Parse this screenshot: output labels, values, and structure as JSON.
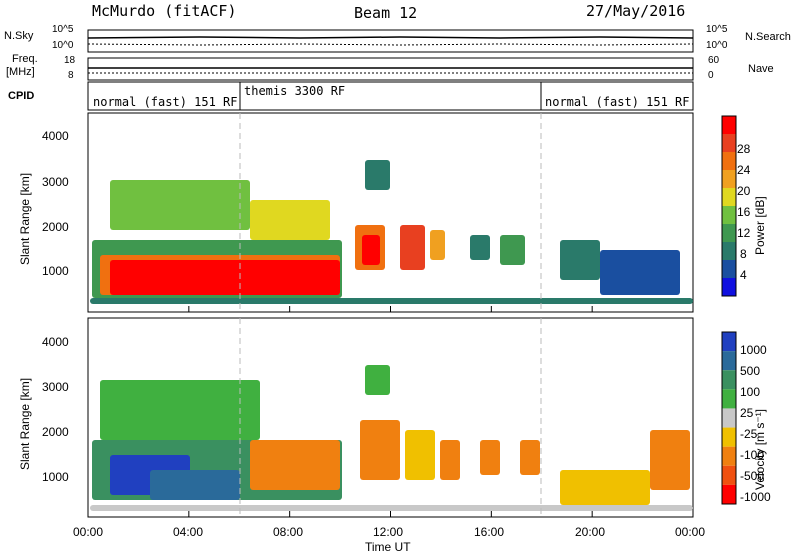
{
  "header": {
    "station": "McMurdo (fitACF)",
    "beam": "Beam 12",
    "date": "27/May/2016"
  },
  "top_panels": {
    "nsky_label": "N.Sky",
    "nsky_ticks": [
      "10^5",
      "10^0"
    ],
    "nsearch_label": "N.Search",
    "nsearch_ticks": [
      "10^5",
      "10^0"
    ],
    "freq_label_1": "Freq.",
    "freq_label_2": "[MHz]",
    "freq_ticks": [
      "18",
      "8"
    ],
    "nave_label": "Nave",
    "nave_ticks": [
      "60",
      "0"
    ],
    "cpid_label": "CPID",
    "modes": [
      "normal (fast) 151 RF",
      "themis 3300 RF",
      "normal (fast) 151 RF"
    ]
  },
  "chart_data": [
    {
      "type": "heatmap",
      "title": "",
      "ylabel": "Slant Range [km]",
      "xlabel": "Time UT",
      "x_ticks": [
        "00:00",
        "04:00",
        "08:00",
        "12:00",
        "16:00",
        "20:00",
        "00:00"
      ],
      "y_ticks": [
        1000,
        2000,
        3000,
        4000
      ],
      "ylim": [
        200,
        4600
      ],
      "xlim_hours": [
        0,
        24
      ],
      "colorbar": {
        "label": "Power [dB]",
        "ticks": [
          "4",
          "8",
          "12",
          "16",
          "20",
          "24",
          "28"
        ],
        "colors": [
          "#1010e0",
          "#1a4fa0",
          "#2a7a6a",
          "#3f9850",
          "#70c040",
          "#e0d820",
          "#f0a020",
          "#f07010",
          "#e84020",
          "#ff0000"
        ]
      }
    },
    {
      "type": "heatmap",
      "title": "",
      "ylabel": "Slant Range [km]",
      "xlabel": "Time UT",
      "x_ticks": [
        "00:00",
        "04:00",
        "08:00",
        "12:00",
        "16:00",
        "20:00",
        "00:00"
      ],
      "y_ticks": [
        1000,
        2000,
        3000,
        4000
      ],
      "ylim": [
        200,
        4600
      ],
      "xlim_hours": [
        0,
        24
      ],
      "colorbar": {
        "label": "Velocity [m s⁻¹]",
        "ticks": [
          "1000",
          "500",
          "100",
          "25",
          "-25",
          "-100",
          "-500",
          "-1000"
        ],
        "colors": [
          "#2040c0",
          "#2a6a9a",
          "#3a9060",
          "#40b040",
          "#c8c8c8",
          "#f0c000",
          "#f08010",
          "#f05010",
          "#ff0000"
        ]
      }
    }
  ]
}
